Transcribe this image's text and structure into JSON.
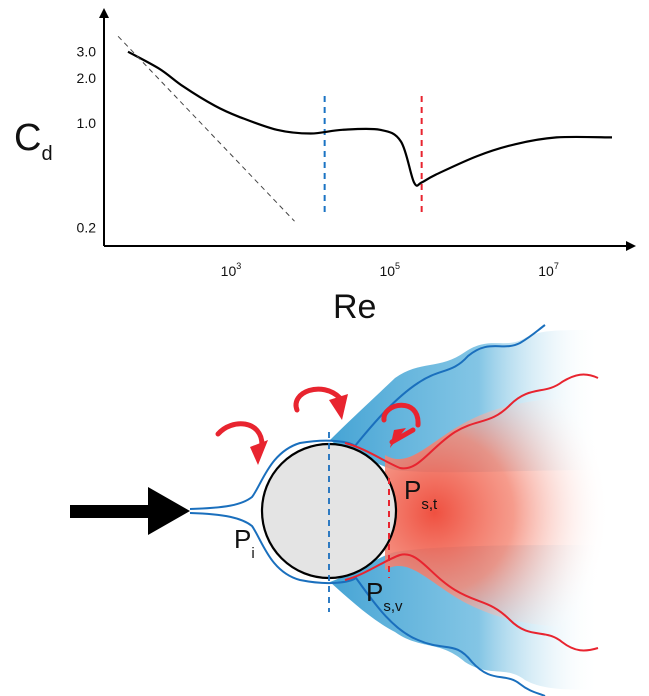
{
  "chart_data": {
    "type": "line",
    "title": "",
    "ylabel": {
      "main": "C",
      "sub": "d"
    },
    "xlabel": "Re",
    "x_scale": "log",
    "y_scale": "log",
    "x_ticks": [
      {
        "base": "10",
        "exp": "3",
        "value": 1000
      },
      {
        "base": "10",
        "exp": "5",
        "value": 100000
      },
      {
        "base": "10",
        "exp": "7",
        "value": 10000000
      }
    ],
    "y_ticks": [
      {
        "label": "3.0",
        "value": 3.0
      },
      {
        "label": "2.0",
        "value": 2.0
      },
      {
        "label": "1.0",
        "value": 1.0
      },
      {
        "label": "0.2",
        "value": 0.2
      }
    ],
    "grid": false,
    "series": [
      {
        "style": "solid",
        "color": "#000000",
        "points": [
          [
            40,
            3.0
          ],
          [
            100,
            2.3
          ],
          [
            200,
            1.75
          ],
          [
            500,
            1.3
          ],
          [
            1000,
            1.1
          ],
          [
            3000,
            0.9
          ],
          [
            8000,
            0.85
          ],
          [
            20000,
            0.9
          ],
          [
            60000,
            0.9
          ],
          [
            110000,
            0.75
          ],
          [
            160000,
            0.4
          ],
          [
            200000,
            0.4
          ],
          [
            300000,
            0.45
          ],
          [
            1000000,
            0.6
          ],
          [
            3000000,
            0.72
          ],
          [
            10000000,
            0.8
          ],
          [
            50000000,
            0.8
          ]
        ]
      },
      {
        "style": "dashed",
        "color": "#444444",
        "points": [
          [
            30,
            3.8
          ],
          [
            5000,
            0.22
          ]
        ]
      }
    ],
    "vlines": [
      {
        "color": "#1a73c4",
        "x": 12000
      },
      {
        "color": "#e8242f",
        "x": 200000
      }
    ]
  },
  "diagram": {
    "labels": {
      "pi": {
        "main": "P",
        "sub": "i"
      },
      "pst": {
        "main": "P",
        "sub": "s,t"
      },
      "psv": {
        "main": "P",
        "sub": "s,v"
      }
    },
    "colors": {
      "laminar_line": "#1a6fbd",
      "turbulent_line": "#e8242f",
      "wake_blue": "#2a90c9",
      "wake_red": "#ef5a4a",
      "sphere_fill": "#e4e4e4",
      "eddy_arrow": "#e8242f",
      "flow_arrow": "#000000"
    }
  }
}
